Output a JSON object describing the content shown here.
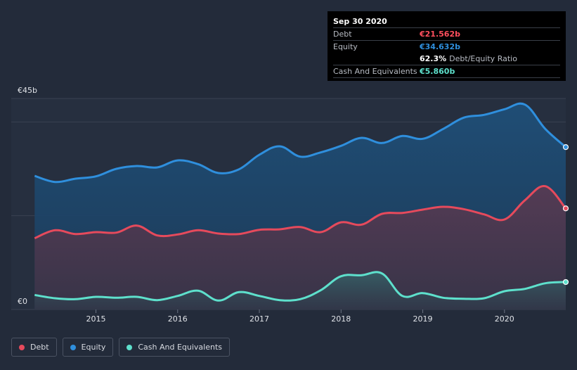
{
  "chart_data": {
    "type": "area",
    "currency": "€",
    "ylabel_top": "€45b",
    "ylabel_bottom": "€0",
    "ylim": [
      0,
      45
    ],
    "xlim": [
      2014.23,
      2020.75
    ],
    "x_ticks": [
      2015,
      2016,
      2017,
      2018,
      2019,
      2020
    ],
    "x_tick_labels": [
      "2015",
      "2016",
      "2017",
      "2018",
      "2019",
      "2020"
    ],
    "series": [
      {
        "name": "Equity",
        "color": "#2f8fdd",
        "points": [
          [
            2014.25,
            28.5
          ],
          [
            2014.5,
            27.2
          ],
          [
            2014.75,
            27.9
          ],
          [
            2015.0,
            28.4
          ],
          [
            2015.25,
            30.0
          ],
          [
            2015.5,
            30.6
          ],
          [
            2015.75,
            30.3
          ],
          [
            2016.0,
            31.8
          ],
          [
            2016.25,
            31.0
          ],
          [
            2016.5,
            29.1
          ],
          [
            2016.75,
            29.9
          ],
          [
            2017.0,
            33.0
          ],
          [
            2017.25,
            34.8
          ],
          [
            2017.5,
            32.6
          ],
          [
            2017.75,
            33.5
          ],
          [
            2018.0,
            34.9
          ],
          [
            2018.25,
            36.6
          ],
          [
            2018.5,
            35.5
          ],
          [
            2018.75,
            37.0
          ],
          [
            2019.0,
            36.4
          ],
          [
            2019.25,
            38.5
          ],
          [
            2019.5,
            40.9
          ],
          [
            2019.75,
            41.5
          ],
          [
            2020.0,
            42.7
          ],
          [
            2020.25,
            43.7
          ],
          [
            2020.5,
            38.5
          ],
          [
            2020.75,
            34.632
          ]
        ]
      },
      {
        "name": "Debt",
        "color": "#e64a5c",
        "points": [
          [
            2014.25,
            15.2
          ],
          [
            2014.5,
            16.9
          ],
          [
            2014.75,
            16.1
          ],
          [
            2015.0,
            16.5
          ],
          [
            2015.25,
            16.4
          ],
          [
            2015.5,
            17.9
          ],
          [
            2015.75,
            15.8
          ],
          [
            2016.0,
            16.0
          ],
          [
            2016.25,
            16.9
          ],
          [
            2016.5,
            16.2
          ],
          [
            2016.75,
            16.1
          ],
          [
            2017.0,
            17.0
          ],
          [
            2017.25,
            17.1
          ],
          [
            2017.5,
            17.6
          ],
          [
            2017.75,
            16.5
          ],
          [
            2018.0,
            18.6
          ],
          [
            2018.25,
            18.1
          ],
          [
            2018.5,
            20.4
          ],
          [
            2018.75,
            20.6
          ],
          [
            2019.0,
            21.3
          ],
          [
            2019.25,
            21.9
          ],
          [
            2019.5,
            21.4
          ],
          [
            2019.75,
            20.3
          ],
          [
            2020.0,
            19.2
          ],
          [
            2020.25,
            23.3
          ],
          [
            2020.5,
            26.3
          ],
          [
            2020.75,
            21.562
          ]
        ]
      },
      {
        "name": "Cash And Equivalents",
        "color": "#5ee0cc",
        "points": [
          [
            2014.25,
            3.1
          ],
          [
            2014.5,
            2.4
          ],
          [
            2014.75,
            2.2
          ],
          [
            2015.0,
            2.7
          ],
          [
            2015.25,
            2.5
          ],
          [
            2015.5,
            2.7
          ],
          [
            2015.75,
            2.0
          ],
          [
            2016.0,
            2.9
          ],
          [
            2016.25,
            4.0
          ],
          [
            2016.5,
            1.9
          ],
          [
            2016.75,
            3.7
          ],
          [
            2017.0,
            2.9
          ],
          [
            2017.25,
            2.0
          ],
          [
            2017.5,
            2.2
          ],
          [
            2017.75,
            4.1
          ],
          [
            2018.0,
            7.1
          ],
          [
            2018.25,
            7.3
          ],
          [
            2018.5,
            7.7
          ],
          [
            2018.75,
            2.9
          ],
          [
            2019.0,
            3.5
          ],
          [
            2019.25,
            2.5
          ],
          [
            2019.5,
            2.3
          ],
          [
            2019.75,
            2.4
          ],
          [
            2020.0,
            3.9
          ],
          [
            2020.25,
            4.4
          ],
          [
            2020.5,
            5.6
          ],
          [
            2020.75,
            5.86
          ]
        ]
      }
    ]
  },
  "tooltip": {
    "date": "Sep 30 2020",
    "debt_label": "Debt",
    "debt_value": "€21.562b",
    "equity_label": "Equity",
    "equity_value": "€34.632b",
    "ratio_value": "62.3%",
    "ratio_label": "Debt/Equity Ratio",
    "cash_label": "Cash And Equivalents",
    "cash_value": "€5.860b"
  },
  "legend": {
    "debt": "Debt",
    "equity": "Equity",
    "cash": "Cash And Equivalents"
  },
  "colors": {
    "background": "#232b3a",
    "debt": "#e64a5c",
    "equity": "#2f8fdd",
    "cash": "#5ee0cc",
    "grid": "#3a4252",
    "axis_text": "#e0e3e8"
  }
}
